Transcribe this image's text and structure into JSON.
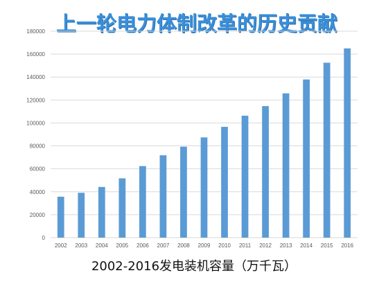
{
  "colors": {
    "bar": "#5b9bd5",
    "grid": "#d9d9d9",
    "tick_text": "#595959",
    "title": "#3a8fd8"
  },
  "chart_data": {
    "type": "bar",
    "title": "上一轮电力体制改革的历史贡献",
    "caption": "2002-2016发电装机容量（万千瓦）",
    "xlabel": "",
    "ylabel": "",
    "categories": [
      "2002",
      "2003",
      "2004",
      "2005",
      "2006",
      "2007",
      "2008",
      "2009",
      "2010",
      "2011",
      "2012",
      "2013",
      "2014",
      "2015",
      "2016"
    ],
    "values": [
      35700,
      39100,
      44200,
      51700,
      62400,
      71800,
      79300,
      87400,
      96600,
      106300,
      114700,
      125800,
      137900,
      152500,
      165000
    ],
    "ylim": [
      0,
      180000
    ],
    "yticks": [
      "0",
      "20000",
      "40000",
      "60000",
      "80000",
      "100000",
      "120000",
      "140000",
      "160000",
      "180000"
    ],
    "grid": true,
    "legend": "none"
  }
}
